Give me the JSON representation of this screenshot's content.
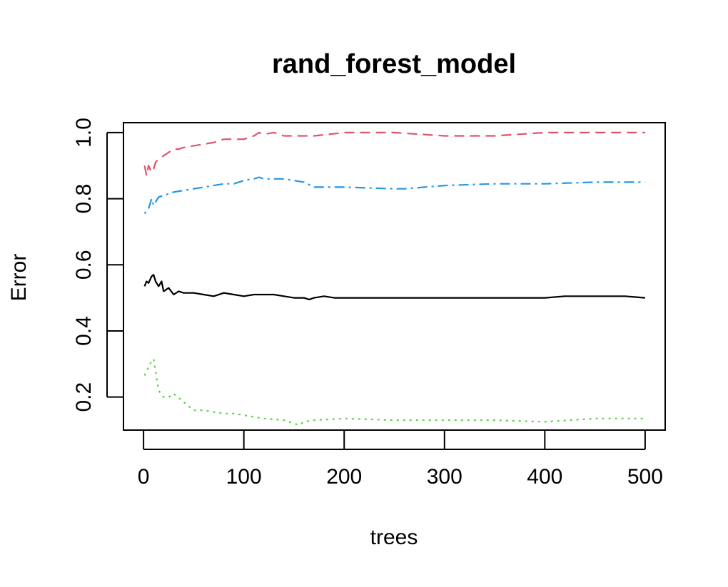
{
  "chart_data": {
    "type": "line",
    "title": "rand_forest_model",
    "xlabel": "trees",
    "ylabel": "Error",
    "xlim": [
      -20,
      520
    ],
    "ylim": [
      0.1,
      1.03
    ],
    "xticks": [
      0,
      100,
      200,
      300,
      400,
      500
    ],
    "xtick_labels": [
      "0",
      "100",
      "200",
      "300",
      "400",
      "500"
    ],
    "yticks": [
      0.2,
      0.4,
      0.6,
      0.8,
      1.0
    ],
    "ytick_labels": [
      "0.2",
      "0.4",
      "0.6",
      "0.8",
      "1.0"
    ],
    "grid": false,
    "legend": "none",
    "series": [
      {
        "color": "#000000",
        "dash": "solid",
        "x": [
          1,
          3,
          5,
          8,
          10,
          12,
          15,
          18,
          20,
          25,
          30,
          35,
          40,
          50,
          60,
          70,
          80,
          90,
          100,
          110,
          120,
          130,
          140,
          150,
          160,
          165,
          170,
          180,
          190,
          200,
          220,
          240,
          260,
          280,
          300,
          320,
          340,
          360,
          380,
          400,
          420,
          440,
          460,
          480,
          500
        ],
        "y": [
          0.535,
          0.55,
          0.545,
          0.565,
          0.57,
          0.55,
          0.535,
          0.55,
          0.52,
          0.53,
          0.51,
          0.52,
          0.515,
          0.515,
          0.51,
          0.505,
          0.515,
          0.51,
          0.505,
          0.51,
          0.51,
          0.51,
          0.505,
          0.5,
          0.5,
          0.495,
          0.5,
          0.505,
          0.5,
          0.5,
          0.5,
          0.5,
          0.5,
          0.5,
          0.5,
          0.5,
          0.5,
          0.5,
          0.5,
          0.5,
          0.505,
          0.505,
          0.505,
          0.505,
          0.5
        ]
      },
      {
        "color": "#DF536B",
        "dash": "dashed",
        "x": [
          1,
          3,
          5,
          8,
          10,
          12,
          15,
          18,
          20,
          25,
          30,
          35,
          40,
          50,
          60,
          70,
          80,
          90,
          100,
          110,
          115,
          120,
          130,
          140,
          150,
          170,
          200,
          250,
          300,
          350,
          400,
          450,
          500
        ],
        "y": [
          0.9,
          0.87,
          0.9,
          0.88,
          0.89,
          0.91,
          0.92,
          0.925,
          0.93,
          0.94,
          0.95,
          0.95,
          0.955,
          0.96,
          0.965,
          0.97,
          0.98,
          0.98,
          0.98,
          0.99,
          1.0,
          0.995,
          1.0,
          0.99,
          0.99,
          0.99,
          1.0,
          1.0,
          0.99,
          0.99,
          1.0,
          1.0,
          1.0
        ]
      },
      {
        "color": "#61D04F",
        "dash": "dotted",
        "x": [
          1,
          5,
          8,
          10,
          15,
          20,
          25,
          30,
          40,
          50,
          60,
          70,
          80,
          90,
          100,
          120,
          140,
          150,
          155,
          160,
          170,
          200,
          250,
          300,
          350,
          400,
          450,
          500
        ],
        "y": [
          0.265,
          0.29,
          0.31,
          0.315,
          0.22,
          0.2,
          0.2,
          0.21,
          0.185,
          0.16,
          0.16,
          0.155,
          0.15,
          0.15,
          0.145,
          0.135,
          0.13,
          0.12,
          0.115,
          0.125,
          0.13,
          0.135,
          0.13,
          0.13,
          0.13,
          0.125,
          0.135,
          0.135
        ]
      },
      {
        "color": "#2297E6",
        "dash": "dotdash",
        "x": [
          1,
          5,
          8,
          10,
          15,
          20,
          25,
          30,
          40,
          50,
          60,
          70,
          80,
          90,
          100,
          110,
          115,
          120,
          130,
          140,
          150,
          160,
          170,
          200,
          250,
          260,
          300,
          350,
          400,
          450,
          500
        ],
        "y": [
          0.755,
          0.77,
          0.8,
          0.78,
          0.805,
          0.81,
          0.815,
          0.82,
          0.825,
          0.83,
          0.835,
          0.84,
          0.845,
          0.845,
          0.855,
          0.86,
          0.865,
          0.86,
          0.86,
          0.86,
          0.855,
          0.85,
          0.835,
          0.835,
          0.83,
          0.83,
          0.84,
          0.845,
          0.845,
          0.85,
          0.85
        ]
      }
    ]
  }
}
